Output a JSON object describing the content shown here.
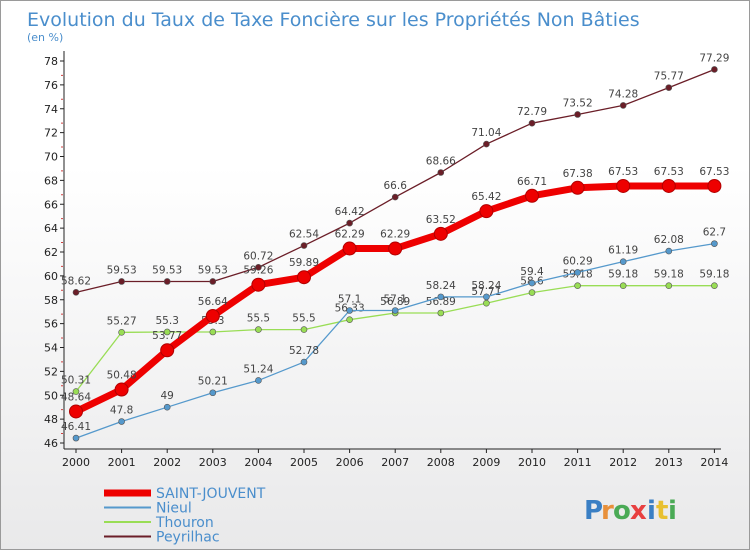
{
  "chart_data": {
    "type": "line",
    "title": "Evolution du Taux de Taxe Foncière sur les Propriétés Non Bâties",
    "subtitle": "(en %)",
    "x": [
      "2000",
      "2001",
      "2002",
      "2003",
      "2004",
      "2005",
      "2006",
      "2007",
      "2008",
      "2009",
      "2010",
      "2011",
      "2012",
      "2013",
      "2014"
    ],
    "ylim": [
      46,
      78
    ],
    "yticks": [
      46,
      48,
      50,
      52,
      54,
      56,
      58,
      60,
      62,
      64,
      66,
      68,
      70,
      72,
      74,
      76,
      78
    ],
    "grid": false,
    "legend_position": "bottom-left",
    "series": [
      {
        "name": "Peyrilhac",
        "color": "#6b1e28",
        "values": [
          58.62,
          59.53,
          59.53,
          59.53,
          60.72,
          62.54,
          64.42,
          66.6,
          68.66,
          71.04,
          72.79,
          73.52,
          74.28,
          75.77,
          77.29
        ],
        "labels": [
          "58.62",
          "59.53",
          "59.53",
          "59.53",
          "60.72",
          "62.54",
          "64.42",
          "66.6",
          "68.66",
          "71.04",
          "72.79",
          "73.52",
          "74.28",
          "75.77",
          "77.29"
        ]
      },
      {
        "name": "Thouron",
        "color": "#99dd55",
        "values": [
          50.31,
          55.27,
          55.3,
          55.3,
          55.5,
          55.5,
          56.33,
          56.89,
          56.89,
          57.71,
          58.6,
          59.18,
          59.18,
          59.18,
          59.18
        ],
        "labels": [
          "50.31",
          "55.27",
          "55.3",
          "55.3",
          "55.5",
          "55.5",
          "56.33",
          "56.89",
          "56.89",
          "57.71",
          "58.6",
          "59.18",
          "59.18",
          "59.18",
          "59.18"
        ]
      },
      {
        "name": "Nieul",
        "color": "#5599cc",
        "values": [
          46.41,
          47.8,
          49,
          50.21,
          51.24,
          52.78,
          57.1,
          57.1,
          58.24,
          58.24,
          59.4,
          60.29,
          61.19,
          62.08,
          62.7
        ],
        "labels": [
          "46.41",
          "47.8",
          "49",
          "50.21",
          "51.24",
          "52.78",
          "57.1",
          "57.1",
          "58.24",
          "58.24",
          "59.4",
          "60.29",
          "61.19",
          "62.08",
          "62.7"
        ]
      },
      {
        "name": "SAINT-JOUVENT",
        "color": "#ee0000",
        "values": [
          48.64,
          50.48,
          53.77,
          56.64,
          59.26,
          59.89,
          62.29,
          62.29,
          63.52,
          65.42,
          66.71,
          67.38,
          67.53,
          67.53,
          67.53
        ],
        "labels": [
          "48.64",
          "50.48",
          "53.77",
          "56.64",
          "59.26",
          "59.89",
          "62.29",
          "62.29",
          "63.52",
          "65.42",
          "66.71",
          "67.38",
          "67.53",
          "67.53",
          "67.53"
        ]
      }
    ],
    "legend": [
      "SAINT-JOUVENT",
      "Nieul",
      "Thouron",
      "Peyrilhac"
    ]
  },
  "logo": {
    "letters": [
      "P",
      "r",
      "o",
      "x",
      "i",
      "t",
      "i"
    ],
    "colors": [
      "#3a7fc4",
      "#e8903a",
      "#4aaa55",
      "#e84040",
      "#3a7fc4",
      "#e8c030",
      "#4aaa55"
    ]
  }
}
